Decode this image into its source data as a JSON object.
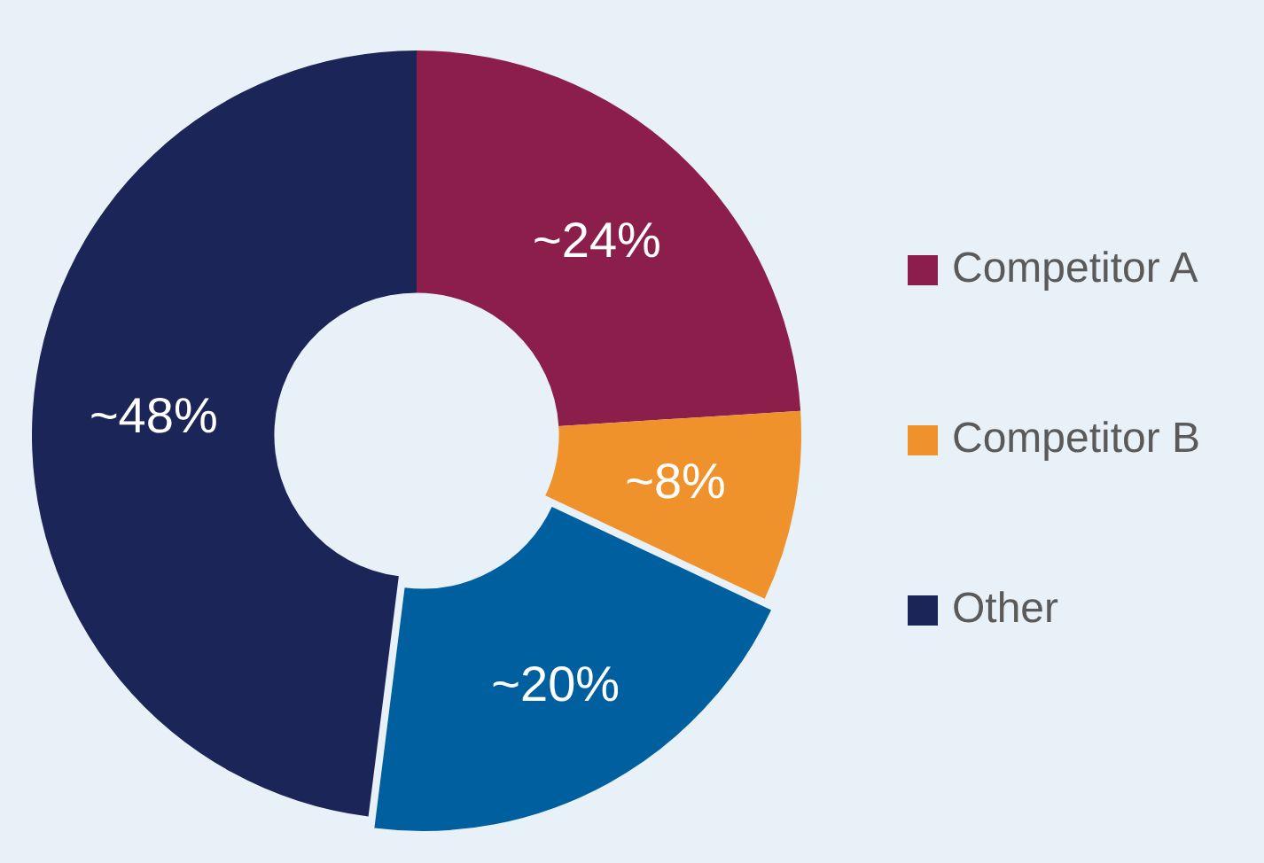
{
  "chart_data": {
    "type": "donut",
    "categories": [
      "Competitor A",
      "Competitor B",
      null,
      "Other"
    ],
    "values": [
      24,
      8,
      20,
      48
    ],
    "colors": [
      "#8b1e4a",
      "#f0922b",
      "#005f9e",
      "#1b2557"
    ],
    "value_labels": [
      "~24%",
      "~8%",
      "~20%",
      "~48%"
    ],
    "legend": "right"
  }
}
